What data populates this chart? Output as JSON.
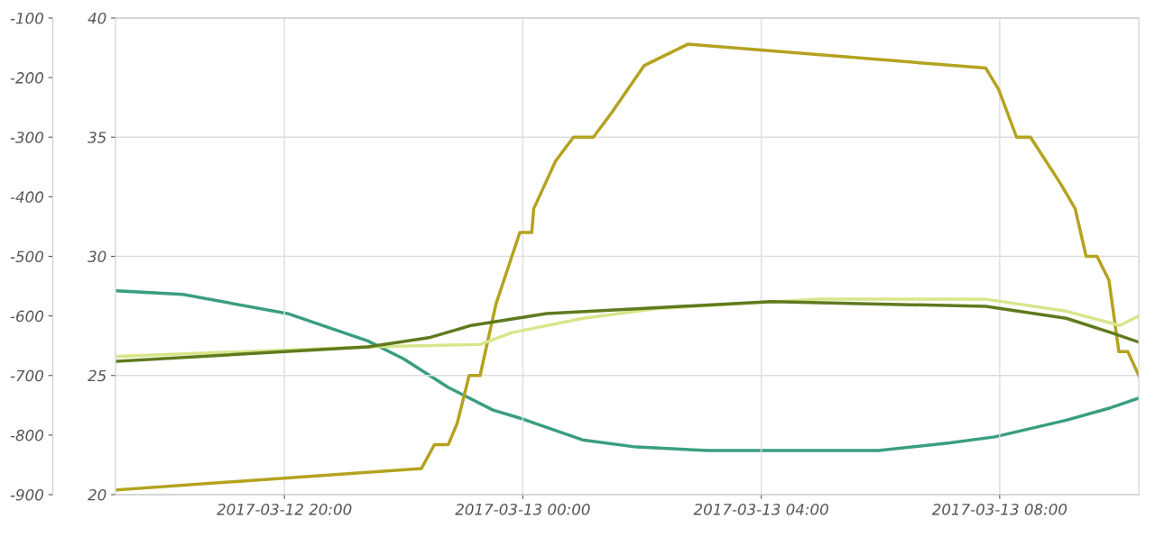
{
  "chart_data": {
    "type": "line",
    "grid": true,
    "marker": "none",
    "line_style": "solid",
    "xlim": [
      "2017-03-12T17:10",
      "2017-03-13T10:20"
    ],
    "xticks": [
      {
        "value": "2017-03-12T20:00",
        "label": "2017-03-12 20:00"
      },
      {
        "value": "2017-03-13T00:00",
        "label": "2017-03-13 00:00"
      },
      {
        "value": "2017-03-13T04:00",
        "label": "2017-03-13 04:00"
      },
      {
        "value": "2017-03-13T08:00",
        "label": "2017-03-13 08:00"
      }
    ],
    "ylim": [
      20,
      40
    ],
    "yticks": [
      20,
      25,
      30,
      35,
      40
    ],
    "y2lim": [
      -900,
      -100
    ],
    "y2ticks": [
      -900,
      -800,
      -700,
      -600,
      -500,
      -400,
      -300,
      -200,
      -100
    ],
    "series": [
      {
        "color": "#3a9e80",
        "axis": "y2",
        "x": [
          "2017-03-12T17:12",
          "2017-03-12T18:18",
          "2017-03-12T20:03",
          "2017-03-12T21:24",
          "2017-03-12T22:00",
          "2017-03-12T22:45",
          "2017-03-12T23:30",
          "2017-03-13T00:00",
          "2017-03-13T01:00",
          "2017-03-13T01:54",
          "2017-03-13T03:06",
          "2017-03-13T05:58",
          "2017-03-13T07:10",
          "2017-03-13T07:55",
          "2017-03-13T09:07",
          "2017-03-13T09:52",
          "2017-03-13T10:20"
        ],
        "values": [
          -558,
          -564,
          -596,
          -642,
          -672,
          -720,
          -758,
          -773,
          -808,
          -820,
          -826,
          -826,
          -813,
          -803,
          -775,
          -754,
          -738
        ]
      },
      {
        "color": "#b5a21f",
        "x": [
          "2017-03-12T17:12",
          "2017-03-12T22:18",
          "2017-03-12T22:31",
          "2017-03-12T22:45",
          "2017-03-12T22:54",
          "2017-03-12T23:06",
          "2017-03-12T23:17",
          "2017-03-12T23:33",
          "2017-03-12T23:57",
          "2017-03-13T00:09",
          "2017-03-13T00:11",
          "2017-03-13T00:33",
          "2017-03-13T00:51",
          "2017-03-13T01:11",
          "2017-03-13T01:29",
          "2017-03-13T02:02",
          "2017-03-13T02:46",
          "2017-03-13T07:46",
          "2017-03-13T07:59",
          "2017-03-13T08:17",
          "2017-03-13T08:31",
          "2017-03-13T09:02",
          "2017-03-13T09:16",
          "2017-03-13T09:27",
          "2017-03-13T09:38",
          "2017-03-13T09:50",
          "2017-03-13T10:00",
          "2017-03-13T10:09",
          "2017-03-13T10:20"
        ],
        "values": [
          20.2,
          21.1,
          22.1,
          22.1,
          23.0,
          25.0,
          25.0,
          28.0,
          31.0,
          31.0,
          32.0,
          34.0,
          35.0,
          35.0,
          36.0,
          38.0,
          38.9,
          37.9,
          37.0,
          35.0,
          35.0,
          33.0,
          32.0,
          30.0,
          30.0,
          29.0,
          26.0,
          26.0,
          25.0
        ]
      },
      {
        "color": "#d8e68a",
        "x": [
          "2017-03-12T17:12",
          "2017-03-12T21:24",
          "2017-03-12T23:17",
          "2017-03-12T23:49",
          "2017-03-13T01:01",
          "2017-03-13T02:13",
          "2017-03-13T04:55",
          "2017-03-13T07:46",
          "2017-03-13T09:07",
          "2017-03-13T10:01",
          "2017-03-13T10:20"
        ],
        "values": [
          25.8,
          26.2,
          26.3,
          26.8,
          27.4,
          27.8,
          28.2,
          28.2,
          27.7,
          27.1,
          27.5
        ]
      },
      {
        "color": "#5f7a1e",
        "x": [
          "2017-03-12T17:12",
          "2017-03-12T21:24",
          "2017-03-12T22:27",
          "2017-03-12T23:08",
          "2017-03-13T00:24",
          "2017-03-13T01:54",
          "2017-03-13T04:10",
          "2017-03-13T07:46",
          "2017-03-13T09:07",
          "2017-03-13T09:52",
          "2017-03-13T10:20"
        ],
        "values": [
          25.6,
          26.2,
          26.6,
          27.1,
          27.6,
          27.8,
          28.1,
          27.9,
          27.4,
          26.8,
          26.4
        ]
      }
    ]
  }
}
